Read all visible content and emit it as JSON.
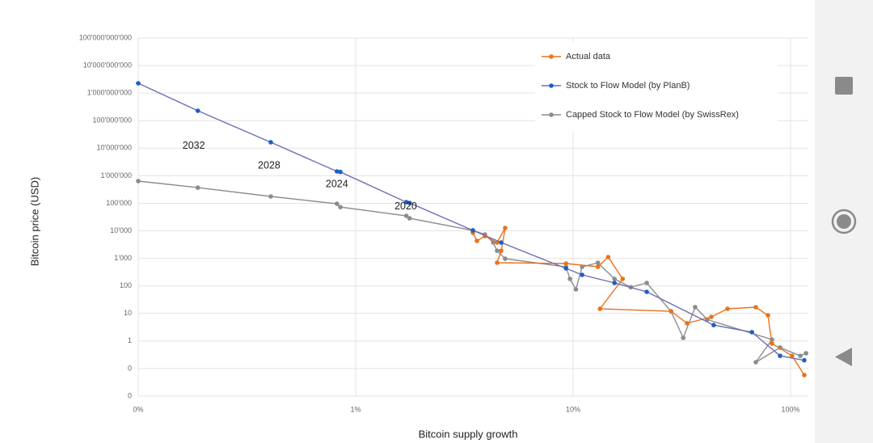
{
  "chart_data": {
    "type": "line",
    "xlabel": "Bitcoin supply growth",
    "ylabel": "Bitcoin price  (USD)",
    "xscale": "log",
    "yscale": "log",
    "grid": true,
    "legend": "upper right",
    "xlim": [
      0.1,
      120.7
    ],
    "ylim": [
      0.01,
      100000000000
    ],
    "xticks": [
      {
        "value": 0.1,
        "label": "0%"
      },
      {
        "value": 1,
        "label": "1%"
      },
      {
        "value": 10,
        "label": "10%"
      },
      {
        "value": 100,
        "label": "100%"
      }
    ],
    "yticks": [
      {
        "value": 0.01,
        "label": "0"
      },
      {
        "value": 0.1,
        "label": "0"
      },
      1,
      10,
      100,
      {
        "value": 1000,
        "label": "1'000"
      },
      {
        "value": 10000,
        "label": "10'000"
      },
      {
        "value": 100000,
        "label": "100'000"
      },
      {
        "value": 1000000,
        "label": "1'000'000"
      },
      {
        "value": 10000000,
        "label": "10'000'000"
      },
      {
        "value": 100000000,
        "label": "100'000'000"
      },
      {
        "value": 1000000000,
        "label": "1'000'000'000"
      },
      {
        "value": 10000000000,
        "label": "10'000'000'000"
      },
      {
        "value": 100000000000,
        "label": "100'000'000'000"
      }
    ],
    "annotations": [
      {
        "text": "2032",
        "x": 0.18,
        "y": 12000000
      },
      {
        "text": "2028",
        "x": 0.4,
        "y": 2300000
      },
      {
        "text": "2024",
        "x": 0.82,
        "y": 480000
      },
      {
        "text": "2020",
        "x": 1.7,
        "y": 75000
      }
    ],
    "series": [
      {
        "name": "Actual data",
        "color": "#e8731e",
        "line_color": "#e8731e",
        "x": [
          3.46,
          3.61,
          3.93,
          4.47,
          4.87,
          4.67,
          4.47,
          9.27,
          13.0,
          14.5,
          16.9,
          13.3,
          28.2,
          33.4,
          43.2,
          51.3,
          69.2,
          78.7,
          82.1,
          101.6,
          115.6
        ],
        "values": [
          8450,
          4300,
          6450,
          3760,
          12700,
          1900,
          695,
          650,
          495,
          1110,
          180,
          14.8,
          12,
          4.4,
          7.5,
          14.8,
          16.9,
          8.6,
          0.81,
          0.29,
          0.058
        ]
      },
      {
        "name": "Stock to Flow Model (by PlanB)",
        "color": "#1f5fc4",
        "line_color": "#6b6fb5",
        "x": [
          0.1,
          0.188,
          0.407,
          0.82,
          0.85,
          1.71,
          1.77,
          3.46,
          4.67,
          9.27,
          11.0,
          15.5,
          21.8,
          44.3,
          66.4,
          89.5,
          115.6
        ],
        "values": [
          2270000000,
          228000000,
          16400000,
          1440000,
          1370000,
          110000,
          103000,
          10400,
          3760,
          433,
          252,
          128,
          61,
          3.8,
          2.1,
          0.29,
          0.2
        ]
      },
      {
        "name": "Capped Stock to Flow Model (by SwissRex)",
        "color": "#8c8c8c",
        "line_color": "#8c8c8c",
        "x": [
          0.1,
          0.188,
          0.407,
          0.82,
          0.85,
          1.71,
          1.77,
          3.46,
          3.93,
          4.29,
          4.47,
          4.87,
          9.27,
          9.67,
          10.3,
          11.0,
          13.0,
          15.5,
          18.4,
          21.8,
          28.2,
          32.1,
          36.4,
          41.4,
          82.1,
          69.2,
          89.5,
          110.9,
          117.8
        ],
        "values": [
          640000,
          370000,
          177000,
          96000,
          73000,
          35000,
          28500,
          10400,
          7400,
          3760,
          1900,
          973,
          490,
          180,
          75,
          490,
          695,
          180,
          90,
          128,
          12,
          1.3,
          17,
          6,
          1.13,
          0.17,
          0.58,
          0.29,
          0.36
        ]
      }
    ]
  }
}
